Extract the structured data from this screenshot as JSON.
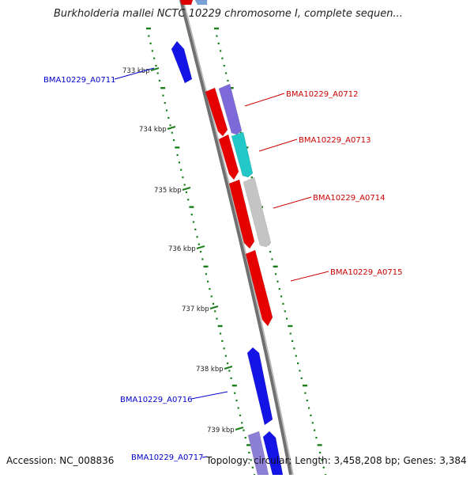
{
  "title": "Burkholderia mallei NCTC 10229 chromosome I, complete sequen...",
  "footer": {
    "accession": "Accession: NC_008836",
    "topology": "Topology: circular; Length: 3,458,208 bp; Genes: 3,384"
  },
  "colors": {
    "backbone": "#888888",
    "ticks": "#1a7f1a",
    "forward_label": "#0000cc",
    "reverse_label": "#cc0000",
    "label_text": "#222222"
  },
  "kbp_labels": [
    "733 kbp",
    "734 kbp",
    "735 kbp",
    "736 kbp",
    "737 kbp",
    "738 kbp",
    "739 kbp"
  ],
  "gene_labels": [
    {
      "id": "BMA10229_A0711",
      "strand": "left"
    },
    {
      "id": "BMA10229_A0712",
      "strand": "right"
    },
    {
      "id": "BMA10229_A0713",
      "strand": "right"
    },
    {
      "id": "BMA10229_A0714",
      "strand": "right"
    },
    {
      "id": "BMA10229_A0715",
      "strand": "right"
    },
    {
      "id": "BMA10229_A0716",
      "strand": "left"
    },
    {
      "id": "BMA10229_A0717",
      "strand": "left"
    }
  ]
}
